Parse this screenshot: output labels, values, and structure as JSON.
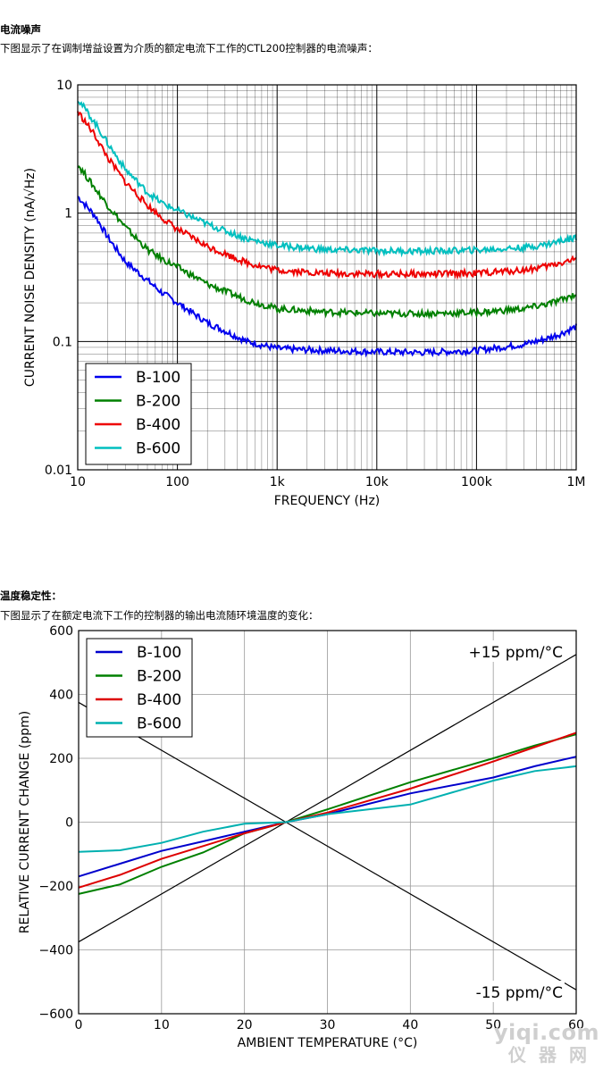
{
  "sections": [
    {
      "heading": "电流噪声",
      "caption": "下图显示了在调制增益设置为介质的额定电流下工作的CTL200控制器的电流噪声："
    },
    {
      "heading": "温度稳定性：",
      "caption": "下图显示了在额定电流下工作的控制器的输出电流随环境温度的变化："
    }
  ],
  "watermark": {
    "line1": "yiqi.com",
    "line2": "仪器网"
  },
  "chart_data": [
    {
      "type": "line",
      "xscale": "log",
      "yscale": "log",
      "xlabel": "FREQUENCY (Hz)",
      "ylabel": "CURRENT NOISE DENSITY (nA/√Hz)",
      "xlim": [
        10,
        1000000
      ],
      "ylim": [
        0.01,
        10
      ],
      "xticks": [
        10,
        100,
        1000,
        10000,
        100000,
        1000000
      ],
      "xtick_labels": [
        "10",
        "100",
        "1k",
        "10k",
        "100k",
        "1M"
      ],
      "yticks": [
        0.01,
        0.1,
        1,
        10
      ],
      "ytick_labels": [
        "0.01",
        "0.1",
        "1",
        "10"
      ],
      "grid": true,
      "legend_position": "lower-left",
      "series": [
        {
          "name": "B-100",
          "color": "#0000ee",
          "x": [
            10,
            15,
            20,
            30,
            50,
            70,
            100,
            200,
            500,
            1000,
            3000,
            10000,
            30000,
            100000,
            300000,
            500000,
            700000,
            1000000
          ],
          "y": [
            1.35,
            0.95,
            0.65,
            0.42,
            0.3,
            0.24,
            0.2,
            0.14,
            0.1,
            0.088,
            0.085,
            0.083,
            0.082,
            0.085,
            0.095,
            0.105,
            0.115,
            0.13
          ]
        },
        {
          "name": "B-200",
          "color": "#008000",
          "x": [
            10,
            15,
            20,
            30,
            50,
            70,
            100,
            200,
            500,
            1000,
            3000,
            10000,
            30000,
            100000,
            300000,
            500000,
            700000,
            1000000
          ],
          "y": [
            2.4,
            1.55,
            1.15,
            0.78,
            0.52,
            0.44,
            0.38,
            0.28,
            0.21,
            0.18,
            0.17,
            0.165,
            0.165,
            0.168,
            0.18,
            0.195,
            0.21,
            0.235
          ]
        },
        {
          "name": "B-400",
          "color": "#ee0000",
          "x": [
            10,
            15,
            20,
            30,
            50,
            70,
            100,
            200,
            500,
            1000,
            3000,
            10000,
            30000,
            100000,
            300000,
            500000,
            700000,
            1000000
          ],
          "y": [
            6.2,
            4.0,
            2.7,
            1.75,
            1.15,
            0.92,
            0.75,
            0.55,
            0.41,
            0.36,
            0.34,
            0.335,
            0.335,
            0.34,
            0.36,
            0.385,
            0.41,
            0.44
          ]
        },
        {
          "name": "B-600",
          "color": "#00bfbf",
          "x": [
            10,
            15,
            20,
            30,
            50,
            70,
            100,
            200,
            500,
            1000,
            3000,
            10000,
            30000,
            100000,
            300000,
            500000,
            700000,
            1000000
          ],
          "y": [
            7.8,
            5.0,
            3.5,
            2.2,
            1.45,
            1.2,
            1.05,
            0.82,
            0.63,
            0.56,
            0.52,
            0.51,
            0.505,
            0.515,
            0.54,
            0.57,
            0.61,
            0.65
          ]
        }
      ]
    },
    {
      "type": "line",
      "xlabel": "AMBIENT TEMPERATURE (°C)",
      "ylabel": "RELATIVE CURRENT CHANGE (ppm)",
      "xlim": [
        0,
        60
      ],
      "ylim": [
        -600,
        600
      ],
      "xticks": [
        0,
        10,
        20,
        30,
        40,
        50,
        60
      ],
      "xtick_labels": [
        "0",
        "10",
        "20",
        "30",
        "40",
        "50",
        "60"
      ],
      "yticks": [
        -600,
        -400,
        -200,
        0,
        200,
        400,
        600
      ],
      "ytick_labels": [
        "−600",
        "−400",
        "−200",
        "0",
        "200",
        "400",
        "600"
      ],
      "grid": true,
      "legend_position": "top-left",
      "series": [
        {
          "name": "B-100",
          "color": "#0000cc",
          "x": [
            0,
            5,
            10,
            15,
            20,
            25,
            30,
            40,
            50,
            55,
            60
          ],
          "y": [
            -170,
            -130,
            -90,
            -60,
            -30,
            0,
            25,
            90,
            140,
            175,
            205
          ]
        },
        {
          "name": "B-200",
          "color": "#008000",
          "x": [
            0,
            5,
            10,
            15,
            20,
            25,
            30,
            40,
            50,
            55,
            60
          ],
          "y": [
            -225,
            -195,
            -140,
            -95,
            -35,
            0,
            40,
            125,
            200,
            240,
            275
          ]
        },
        {
          "name": "B-400",
          "color": "#dd0000",
          "x": [
            0,
            5,
            10,
            15,
            20,
            25,
            30,
            40,
            50,
            55,
            60
          ],
          "y": [
            -205,
            -165,
            -115,
            -75,
            -35,
            0,
            30,
            105,
            190,
            235,
            280
          ]
        },
        {
          "name": "B-600",
          "color": "#00b0b0",
          "x": [
            0,
            5,
            10,
            15,
            20,
            25,
            30,
            40,
            50,
            55,
            60
          ],
          "y": [
            -93,
            -88,
            -65,
            -30,
            -5,
            0,
            25,
            55,
            130,
            160,
            175
          ]
        }
      ],
      "reference_lines": [
        {
          "label": "+15 ppm/°C",
          "slope": 15,
          "x0": 25,
          "color": "#000000"
        },
        {
          "label": "-15 ppm/°C",
          "slope": -15,
          "x0": 25,
          "color": "#000000"
        }
      ]
    }
  ]
}
